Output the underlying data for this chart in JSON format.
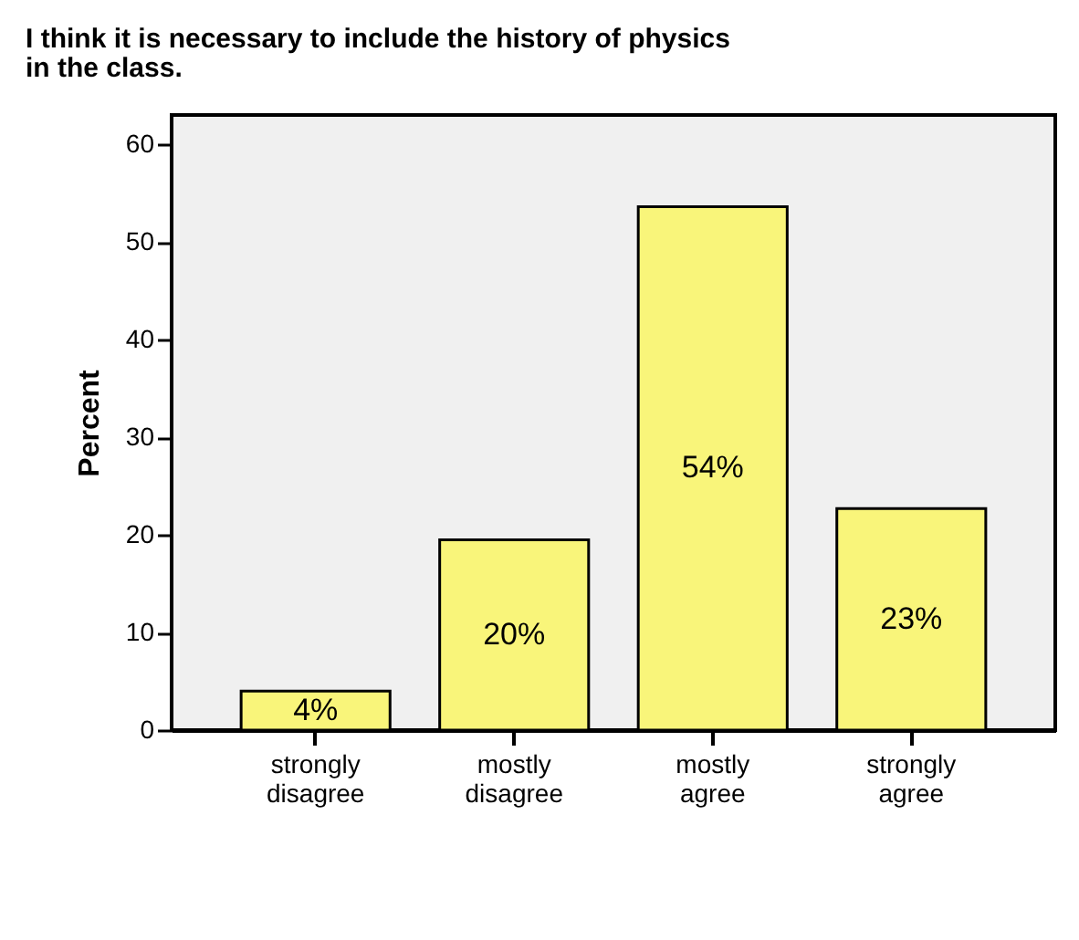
{
  "chart_data": {
    "type": "bar",
    "title": "I think it is necessary to include the history of physics in the class.",
    "ylabel": "Percent",
    "categories": [
      "strongly disagree",
      "mostly disagree",
      "mostly agree",
      "strongly agree"
    ],
    "values": [
      4.0,
      19.5,
      53.6,
      22.7
    ],
    "value_labels": [
      "4%",
      "20%",
      "54%",
      "23%"
    ],
    "color": "#f9f57a",
    "ylim": [
      0,
      63
    ],
    "yticks": [
      0,
      10,
      20,
      30,
      40,
      50,
      60
    ],
    "grid": false
  }
}
